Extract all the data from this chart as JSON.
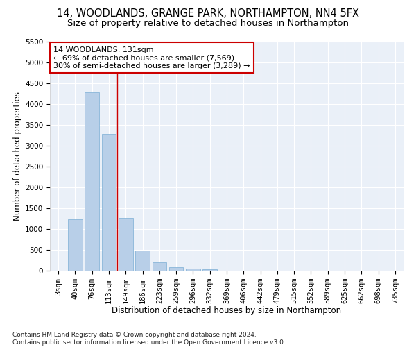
{
  "title": "14, WOODLANDS, GRANGE PARK, NORTHAMPTON, NN4 5FX",
  "subtitle": "Size of property relative to detached houses in Northampton",
  "xlabel": "Distribution of detached houses by size in Northampton",
  "ylabel": "Number of detached properties",
  "categories": [
    "3sqm",
    "40sqm",
    "76sqm",
    "113sqm",
    "149sqm",
    "186sqm",
    "223sqm",
    "259sqm",
    "296sqm",
    "332sqm",
    "369sqm",
    "406sqm",
    "442sqm",
    "479sqm",
    "515sqm",
    "552sqm",
    "589sqm",
    "625sqm",
    "662sqm",
    "698sqm",
    "735sqm"
  ],
  "values": [
    0,
    1230,
    4280,
    3280,
    1270,
    480,
    200,
    80,
    50,
    30,
    0,
    0,
    0,
    0,
    0,
    0,
    0,
    0,
    0,
    0,
    0
  ],
  "bar_color": "#b8cfe8",
  "bar_edge_color": "#7aadd4",
  "vline_color": "#cc0000",
  "annotation_text": "14 WOODLANDS: 131sqm\n← 69% of detached houses are smaller (7,569)\n30% of semi-detached houses are larger (3,289) →",
  "annotation_box_color": "#ffffff",
  "annotation_box_edge": "#cc0000",
  "ylim": [
    0,
    5500
  ],
  "yticks": [
    0,
    500,
    1000,
    1500,
    2000,
    2500,
    3000,
    3500,
    4000,
    4500,
    5000,
    5500
  ],
  "footnote": "Contains HM Land Registry data © Crown copyright and database right 2024.\nContains public sector information licensed under the Open Government Licence v3.0.",
  "bg_color": "#eaf0f8",
  "grid_color": "#ffffff",
  "title_fontsize": 10.5,
  "subtitle_fontsize": 9.5,
  "axis_label_fontsize": 8.5,
  "tick_fontsize": 7.5,
  "annotation_fontsize": 8,
  "footnote_fontsize": 6.5
}
